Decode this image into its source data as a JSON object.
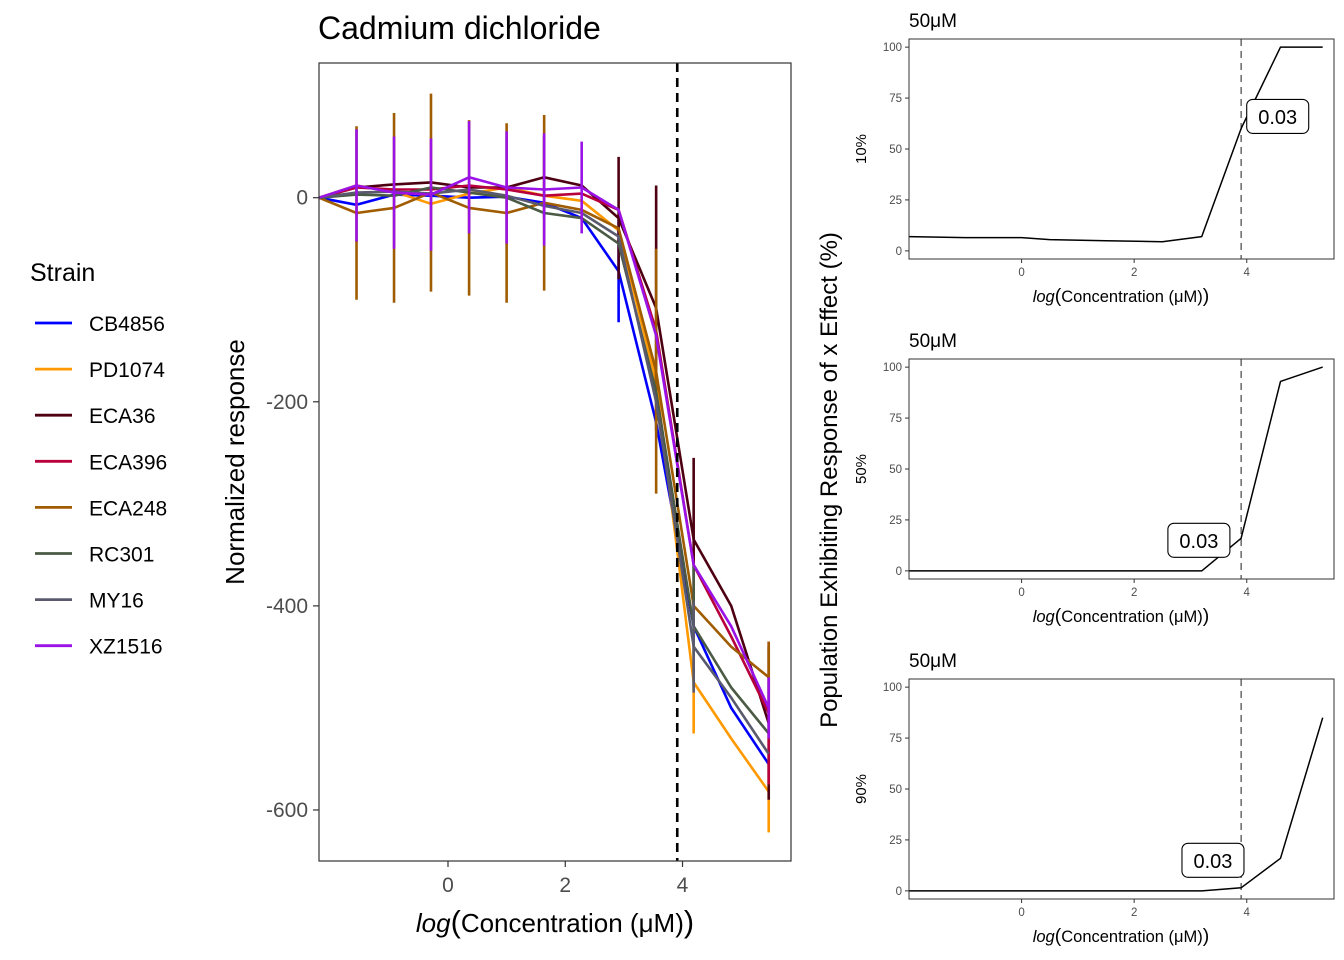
{
  "chart_data": [
    {
      "type": "line",
      "title": "Cadmium dichloride",
      "xlabel": "log(Concentration (μM))",
      "ylabel": "Normalized response",
      "xlim": [
        -2.2,
        5.85
      ],
      "ylim": [
        -650,
        132
      ],
      "xticks": [
        "0",
        "2",
        "4"
      ],
      "xtick_values": [
        0,
        2,
        4
      ],
      "yticks": [
        "0",
        "-200",
        "-400",
        "-600"
      ],
      "ytick_values": [
        0,
        -200,
        -400,
        -600
      ],
      "vline_x": 3.91,
      "grid": false,
      "legend_position": "left",
      "legend_title": "Strain",
      "x": [
        -2.2,
        -1.56,
        -0.92,
        -0.29,
        0.36,
        1.0,
        1.64,
        2.28,
        2.91,
        3.55,
        4.19,
        4.83,
        5.47
      ],
      "series": [
        {
          "name": "CB4856",
          "color": "#0000ff",
          "values": [
            0,
            -7,
            3,
            2,
            0,
            1,
            -5,
            -20,
            -72,
            -220,
            -420,
            -500,
            -555
          ],
          "err": [
            0,
            0,
            0,
            0,
            0,
            0,
            0,
            0,
            50,
            0,
            0,
            0,
            0
          ]
        },
        {
          "name": "PD1074",
          "color": "#ff9900",
          "values": [
            0,
            12,
            6,
            -6,
            4,
            10,
            2,
            -3,
            -32,
            -180,
            -475,
            -530,
            -582
          ],
          "err": [
            0,
            0,
            0,
            0,
            0,
            0,
            0,
            0,
            0,
            0,
            50,
            0,
            40
          ]
        },
        {
          "name": "ECA36",
          "color": "#4d0011",
          "values": [
            0,
            10,
            13,
            15,
            10,
            10,
            20,
            12,
            -20,
            -108,
            -335,
            -400,
            -515
          ],
          "err": [
            0,
            0,
            0,
            0,
            0,
            0,
            40,
            0,
            60,
            120,
            80,
            0,
            75
          ]
        },
        {
          "name": "ECA396",
          "color": "#b8003c",
          "values": [
            0,
            10,
            8,
            8,
            12,
            8,
            2,
            4,
            -12,
            -130,
            -360,
            -430,
            -505
          ],
          "err": [
            0,
            0,
            0,
            0,
            0,
            0,
            0,
            0,
            0,
            0,
            0,
            0,
            70
          ]
        },
        {
          "name": "ECA248",
          "color": "#a05c00",
          "values": [
            0,
            -15,
            -10,
            5,
            -10,
            -15,
            -5,
            -12,
            -30,
            -170,
            -400,
            -440,
            -470
          ],
          "err": [
            0,
            85,
            93,
            97,
            86,
            88,
            86,
            0,
            0,
            120,
            0,
            0,
            35
          ]
        },
        {
          "name": "RC301",
          "color": "#4a5a44",
          "values": [
            0,
            3,
            2,
            10,
            5,
            0,
            -15,
            -20,
            -45,
            -190,
            -420,
            -480,
            -525
          ],
          "err": [
            0,
            0,
            0,
            0,
            0,
            0,
            0,
            0,
            0,
            0,
            60,
            0,
            0
          ]
        },
        {
          "name": "MY16",
          "color": "#5a5a6e",
          "values": [
            0,
            5,
            6,
            4,
            8,
            2,
            -8,
            -15,
            -38,
            -200,
            -440,
            -490,
            -545
          ],
          "err": [
            0,
            0,
            0,
            0,
            0,
            0,
            0,
            0,
            0,
            0,
            45,
            0,
            0
          ]
        },
        {
          "name": "XZ1516",
          "color": "#9a12e6",
          "values": [
            0,
            12,
            5,
            3,
            20,
            10,
            8,
            10,
            -12,
            -135,
            -360,
            -420,
            -500
          ],
          "err": [
            0,
            55,
            55,
            55,
            55,
            55,
            55,
            45,
            0,
            0,
            0,
            0,
            30
          ]
        }
      ]
    },
    {
      "type": "line",
      "title": "50μM",
      "xlabel": "log(Concentration (μM))",
      "ylabel": "10%",
      "xlim": [
        -2.0,
        5.55
      ],
      "ylim": [
        -4,
        104
      ],
      "xticks": [
        "0",
        "2",
        "4"
      ],
      "xtick_values": [
        0,
        2,
        4
      ],
      "yticks": [
        "0",
        "25",
        "50",
        "75",
        "100"
      ],
      "ytick_values": [
        0,
        25,
        50,
        75,
        100
      ],
      "vline_x": 3.9,
      "annotation": {
        "text": "0.03",
        "x": 4.55,
        "y": 66
      },
      "x": [
        -2.0,
        -1.0,
        0.0,
        0.5,
        1.5,
        2.5,
        3.2,
        3.9,
        4.6,
        5.35
      ],
      "values": [
        7,
        6.5,
        6.5,
        5.5,
        5,
        4.5,
        7,
        60,
        100,
        100
      ]
    },
    {
      "type": "line",
      "title": "50μM",
      "xlabel": "log(Concentration (μM))",
      "ylabel": "50%",
      "xlim": [
        -2.0,
        5.55
      ],
      "ylim": [
        -4,
        104
      ],
      "xticks": [
        "0",
        "2",
        "4"
      ],
      "xtick_values": [
        0,
        2,
        4
      ],
      "yticks": [
        "0",
        "25",
        "50",
        "75",
        "100"
      ],
      "ytick_values": [
        0,
        25,
        50,
        75,
        100
      ],
      "vline_x": 3.9,
      "annotation": {
        "text": "0.03",
        "x": 3.15,
        "y": 15
      },
      "x": [
        -2.0,
        3.2,
        3.9,
        4.6,
        5.35
      ],
      "values": [
        0,
        0,
        16,
        93,
        100
      ]
    },
    {
      "type": "line",
      "title": "50μM",
      "xlabel": "log(Concentration (μM))",
      "ylabel": "90%",
      "xlim": [
        -2.0,
        5.55
      ],
      "ylim": [
        -4,
        104
      ],
      "xticks": [
        "0",
        "2",
        "4"
      ],
      "xtick_values": [
        0,
        2,
        4
      ],
      "yticks": [
        "0",
        "25",
        "50",
        "75",
        "100"
      ],
      "ytick_values": [
        0,
        25,
        50,
        75,
        100
      ],
      "vline_x": 3.9,
      "annotation": {
        "text": "0.03",
        "x": 3.4,
        "y": 15
      },
      "x": [
        -2.0,
        3.2,
        3.9,
        4.6,
        5.35
      ],
      "values": [
        0,
        0,
        1.5,
        16,
        85
      ]
    }
  ],
  "shared_ylabel": "Population Exhibiting Response of x Effect (%)"
}
